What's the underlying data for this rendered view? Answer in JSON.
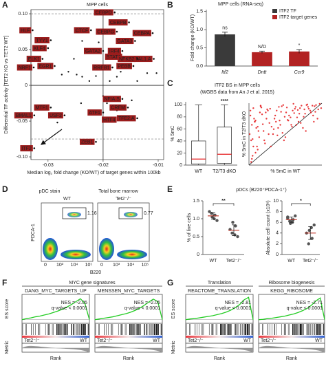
{
  "panel_labels": [
    "A",
    "B",
    "C",
    "D",
    "E",
    "F",
    "G"
  ],
  "chart_data": [
    {
      "type": "scatter",
      "title": "MPP cells",
      "xlabel": "Median log₂ fold change (KO/WT) of target genes within 100kb",
      "ylabel": "Differential TF activity [TET2 KO vs TET2 WT]",
      "xlim": [
        -0.0331,
        -0.009
      ],
      "ylim": [
        -0.1038,
        0.1058
      ],
      "xticks": [
        -0.03,
        -0.02,
        -0.01
      ],
      "yticks": [
        {
          "value": -0.1,
          "label": "-0.10"
        },
        -0.05,
        0,
        0.05,
        {
          "value": 0.1,
          "label": "0.10"
        }
      ],
      "reference_lines": {
        "dashed_y": [
          0.1,
          -0.075
        ],
        "solid_x": -0.02,
        "solid_y": 0
      },
      "label_color": "#9b1c1c",
      "point_color": "#111",
      "labeled": {
        "labels": [
          "CEBPD",
          "CEBPB",
          "CTCF",
          "HLF",
          "CEBPG",
          "CEBPA",
          "GATA3",
          "TYY1",
          "KLF4",
          "GATA2",
          "IRF4",
          "STAT1",
          "TAL1.A",
          "ELK1",
          "NFKB2",
          "EGR1",
          "NRF1",
          "PEBB",
          "RREB1",
          "NFIA.S",
          "MTF1",
          "CREM",
          "ATF1",
          "BMAL1",
          "USF2",
          "HTF4",
          "TFE2.A",
          "ZEB1",
          "ITF2"
        ],
        "x": [
          -0.0179,
          -0.0153,
          -0.0222,
          -0.0328,
          -0.0175,
          -0.011,
          -0.0142,
          -0.0295,
          -0.03,
          -0.02,
          -0.0165,
          -0.0163,
          -0.0108,
          -0.031,
          -0.0138,
          -0.0288,
          -0.0326,
          -0.0145,
          -0.0183,
          -0.0165,
          -0.0295,
          -0.0155,
          -0.02,
          -0.0325,
          -0.027,
          -0.0173,
          -0.0138,
          -0.0213,
          -0.0325
        ],
        "y": [
          0.102,
          0.088,
          0.077,
          0.077,
          0.075,
          0.073,
          0.062,
          0.063,
          0.052,
          0.048,
          0.048,
          0.04,
          0.037,
          0.037,
          0.037,
          0.027,
          0.025,
          0.027,
          0.025,
          -0.019,
          -0.031,
          -0.031,
          -0.038,
          -0.042,
          -0.042,
          -0.048,
          -0.046,
          -0.079,
          -0.088
        ]
      },
      "unlabeled": {
        "x": [
          -0.0263,
          -0.0248,
          -0.0238,
          -0.0225,
          -0.0213,
          -0.0175,
          -0.0168,
          -0.0188,
          -0.0138,
          -0.012,
          -0.0103,
          -0.0213,
          -0.0208,
          -0.0238,
          -0.0253,
          -0.0275,
          -0.02,
          -0.0193,
          -0.0175,
          -0.0148,
          -0.0283,
          -0.024
        ],
        "y": [
          0.019,
          0.015,
          0.012,
          0.006,
          0.013,
          0.012,
          0.019,
          0.006,
          0.006,
          0.017,
          0.017,
          0.046,
          0.06,
          0.062,
          0.037,
          0.015,
          -0.015,
          -0.025,
          -0.035,
          -0.021,
          -0.052,
          -0.025
        ]
      }
    },
    {
      "type": "bar",
      "title": "MPP cells (RNA-seq)",
      "ylabel": "Fold change (KO/WT)",
      "categories": [
        "Itf2",
        "Dntt",
        "Ccr9"
      ],
      "values": [
        0.87,
        0.38,
        0.4
      ],
      "errors": [
        0.06,
        0.03,
        0.05
      ],
      "colors": [
        "#3a3a3a",
        "#b22222",
        "#b22222"
      ],
      "annotations": [
        "ns",
        "N/D",
        "*"
      ],
      "legend": [
        {
          "name": "ITF2 TF",
          "color": "#3a3a3a"
        },
        {
          "name": "ITF2 target genes",
          "color": "#b22222"
        }
      ],
      "ylim": [
        0,
        1.55
      ],
      "yticks": [
        {
          "value": 0,
          "label": "0.0"
        },
        0.5,
        {
          "value": 1,
          "label": "1.0"
        },
        1.5
      ]
    },
    {
      "type": "box",
      "title": "ITF2 BS in MPP cells",
      "subtitle": "(WGBS data from An J et al. 2015)",
      "ylabel": "% 5mC",
      "categories": [
        "WT",
        "T2/T3 dKO"
      ],
      "boxes": [
        {
          "min": 0,
          "q1": 2,
          "median": 10,
          "q3": 40,
          "max": 100
        },
        {
          "min": 0,
          "q1": 3,
          "median": 18,
          "q3": 63,
          "max": 100
        }
      ],
      "annotation": "****",
      "median_color": "#e41a1c",
      "ylim": [
        0,
        105
      ],
      "yticks": [
        0,
        20,
        40,
        60,
        80,
        100
      ]
    },
    {
      "type": "scatter",
      "xlabel": "% 5mC in WT",
      "ylabel": "% 5mC in T2/T3 dKO",
      "xlim": [
        0,
        100
      ],
      "ylim": [
        0,
        100
      ],
      "color": "#e41a1c",
      "diagonal": true,
      "x": [
        3,
        8,
        12,
        15,
        20,
        25,
        30,
        35,
        40,
        45,
        50,
        55,
        60,
        65,
        70,
        75,
        80,
        85,
        90,
        95,
        5,
        10,
        18,
        22,
        28,
        33,
        38,
        42,
        48,
        52,
        58,
        62,
        68,
        72,
        78,
        82,
        88,
        92,
        97,
        2,
        6,
        14,
        24,
        34,
        44,
        54,
        64,
        74,
        84,
        94,
        9,
        19,
        29,
        39,
        49,
        59,
        69,
        79,
        89,
        99,
        4,
        11,
        17,
        27,
        37,
        47,
        57,
        67,
        77,
        87,
        13,
        23,
        31,
        41,
        46,
        53,
        63,
        71,
        81,
        91,
        7,
        16,
        21,
        26,
        36,
        43,
        51,
        61,
        66,
        76,
        1,
        2,
        4,
        6,
        9,
        12,
        16,
        3,
        5,
        8
      ],
      "y": [
        40,
        70,
        25,
        85,
        55,
        90,
        30,
        75,
        60,
        95,
        45,
        80,
        88,
        65,
        92,
        78,
        98,
        85,
        95,
        90,
        15,
        60,
        82,
        35,
        68,
        50,
        88,
        72,
        40,
        93,
        65,
        84,
        70,
        96,
        55,
        91,
        80,
        97,
        99,
        80,
        92,
        45,
        75,
        58,
        86,
        72,
        94,
        60,
        88,
        75,
        20,
        66,
        91,
        48,
        78,
        62,
        83,
        97,
        70,
        92,
        65,
        30,
        93,
        50,
        70,
        97,
        77,
        89,
        83,
        96,
        55,
        85,
        62,
        94,
        52,
        73,
        91,
        68,
        94,
        86,
        75,
        95,
        40,
        88,
        80,
        65,
        85,
        99,
        77,
        90,
        50,
        88,
        10,
        30,
        72,
        62,
        96,
        5,
        42,
        70
      ]
    },
    {
      "type": "strip",
      "title": "pDCs (B220⁺PDCA-1⁺)",
      "ylabel": "% of live cells",
      "categories": [
        "WT",
        "Tet2⁻/⁻"
      ],
      "groups": [
        [
          1.2,
          1.0,
          1.1,
          1.15,
          1.05,
          0.95
        ],
        [
          0.7,
          0.55,
          0.8,
          0.6,
          0.9,
          0.5
        ]
      ],
      "means": [
        1.08,
        0.68
      ],
      "sds": [
        0.09,
        0.15
      ],
      "annotation": "**",
      "colors": [
        "#555",
        "#555"
      ],
      "mean_color": "#c0392b",
      "ylim": [
        0,
        1.5
      ],
      "yticks": [
        0,
        0.5,
        {
          "value": 1,
          "label": "1.0"
        },
        1.5
      ]
    },
    {
      "type": "strip",
      "ylabel": "Absolute cell count (x10⁶)",
      "categories": [
        "WT",
        "Tet2⁻/⁻"
      ],
      "groups": [
        [
          7,
          6,
          6.5,
          6.2,
          5.8,
          7.2,
          6.8
        ],
        [
          4,
          5,
          3,
          2,
          4.5,
          5.5
        ]
      ],
      "means": [
        6.5,
        4
      ],
      "sds": [
        0.5,
        1.2
      ],
      "annotation": "*",
      "colors": [
        "#555",
        "#555"
      ],
      "mean_color": "#c0392b",
      "ylim": [
        0,
        10
      ],
      "yticks": [
        0,
        2,
        4,
        6,
        8,
        10
      ]
    },
    {
      "type": "line",
      "title": "DANG_MYC_TARGETS_UP",
      "nes": "NES = -2.05",
      "qvalue": "q-value < 0.0001",
      "color": "#22cc22",
      "xlim": [
        0,
        15
      ],
      "ylim": [
        -0.1,
        0.7
      ],
      "x": [
        0,
        1,
        2,
        3,
        4,
        5,
        6,
        7,
        8,
        9,
        10,
        11,
        12,
        13,
        14,
        15
      ],
      "values": [
        0,
        0.03,
        0.05,
        0.08,
        0.1,
        0.13,
        0.16,
        0.2,
        0.24,
        0.29,
        0.35,
        0.42,
        0.5,
        0.58,
        0.45,
        0
      ]
    },
    {
      "type": "line",
      "title": "MENSSEN_MYC_TARGETS",
      "nes": "NES = -2.05",
      "qvalue": "q-value < 0.0001",
      "color": "#22cc22",
      "xlim": [
        0,
        15
      ],
      "ylim": [
        -0.1,
        0.7
      ],
      "x": [
        0,
        1,
        2,
        3,
        4,
        5,
        6,
        7,
        8,
        9,
        10,
        11,
        12,
        13,
        14,
        15
      ],
      "values": [
        0,
        0.02,
        0.04,
        0.06,
        0.08,
        0.11,
        0.14,
        0.17,
        0.21,
        0.26,
        0.32,
        0.4,
        0.49,
        0.57,
        0.5,
        0
      ]
    },
    {
      "type": "line",
      "title": "REACTOME_TRANSLATION",
      "nes": "NES = -2.81",
      "qvalue": "q-value < 0.0001",
      "color": "#22cc22",
      "xlim": [
        0,
        15
      ],
      "ylim": [
        -0.1,
        0.7
      ],
      "x": [
        0,
        1,
        2,
        3,
        4,
        5,
        6,
        7,
        8,
        9,
        10,
        11,
        12,
        13,
        14,
        15
      ],
      "values": [
        0,
        0.02,
        0.03,
        0.05,
        0.07,
        0.09,
        0.11,
        0.14,
        0.17,
        0.21,
        0.26,
        0.33,
        0.42,
        0.55,
        0.62,
        0
      ]
    },
    {
      "type": "line",
      "title": "KEGG_RIBOSOME",
      "nes": "NES = -2.71",
      "qvalue": "q-value < 0.0001",
      "color": "#22cc22",
      "xlim": [
        0,
        15
      ],
      "ylim": [
        -0.1,
        0.7
      ],
      "x": [
        0,
        1,
        2,
        3,
        4,
        5,
        6,
        7,
        8,
        9,
        10,
        11,
        12,
        13,
        14,
        15
      ],
      "values": [
        0,
        0.01,
        0.03,
        0.04,
        0.06,
        0.08,
        0.1,
        0.13,
        0.16,
        0.2,
        0.25,
        0.31,
        0.4,
        0.52,
        0.6,
        0
      ]
    }
  ],
  "panels": {
    "D": {
      "stain": "pDC stain",
      "tissue": "Total bone marrow",
      "samples": [
        "WT",
        "Tet2⁻/⁻"
      ],
      "gates": [
        1.16,
        0.77
      ],
      "ylabel": "PDCA-1",
      "xlabel": "B220",
      "xticks": [
        "0",
        "10³",
        "10⁴",
        "10⁵"
      ]
    },
    "F": {
      "header": "MYC gene signatures"
    },
    "G": {
      "headers": [
        "Translation",
        "Ribosome biogenesis"
      ]
    },
    "gsea": {
      "ylabel": "ES score",
      "metric": "Metric",
      "xlabel": "Rank",
      "left": "Tet2⁻/⁻",
      "right": "WT"
    }
  }
}
